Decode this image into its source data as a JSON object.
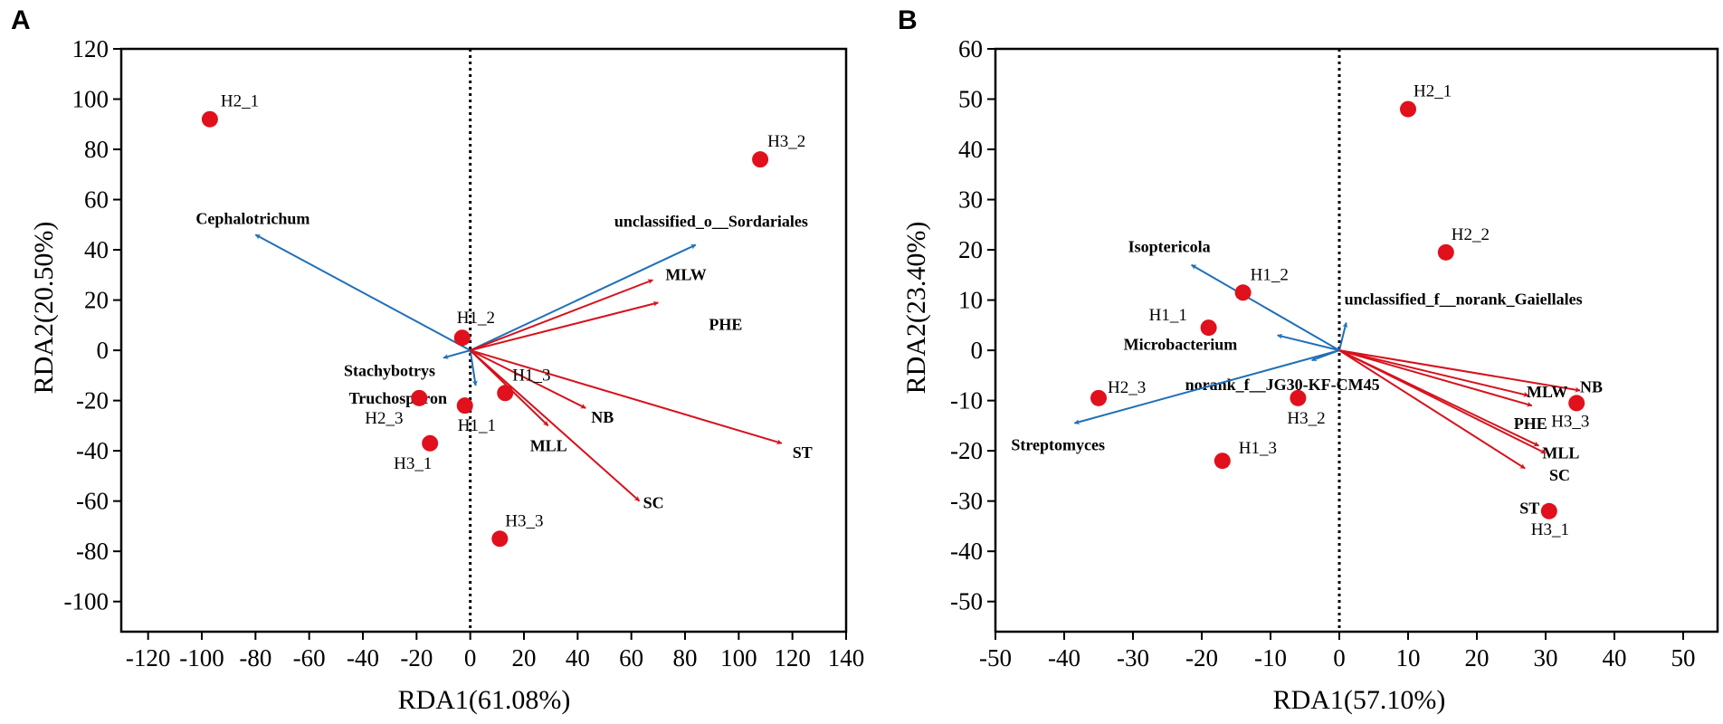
{
  "chart_data": [
    {
      "type": "scatter",
      "panel": "A",
      "xlabel": "RDA1(61.08%)",
      "ylabel": "RDA2(20.50%)",
      "xlim": [
        -130,
        140
      ],
      "ylim": [
        -112,
        120
      ],
      "xticks": [
        -120,
        -100,
        -80,
        -60,
        -40,
        -20,
        0,
        20,
        40,
        60,
        80,
        100,
        120,
        140
      ],
      "xtick_labels": [
        "-120",
        "-100",
        "-80",
        "-60",
        "-40",
        "-20",
        "0",
        "20",
        "40",
        "60",
        "80",
        "100",
        "120",
        "140"
      ],
      "yticks": [
        120,
        100,
        80,
        60,
        40,
        20,
        0,
        -20,
        -40,
        -60,
        -80,
        -100
      ],
      "ytick_labels": [
        "120",
        "100",
        "80",
        "60",
        "40",
        "20",
        "0",
        "-20",
        "-40",
        "-60",
        "-80",
        "-100"
      ],
      "samples": [
        {
          "name": "H2_1",
          "x": -97,
          "y": 92
        },
        {
          "name": "H3_2",
          "x": 108,
          "y": 76
        },
        {
          "name": "H1_2",
          "x": -3,
          "y": 5
        },
        {
          "name": "H1_3",
          "x": 13,
          "y": -17
        },
        {
          "name": "H2_3",
          "x": -19,
          "y": -19
        },
        {
          "name": "H1_1",
          "x": -2,
          "y": -22
        },
        {
          "name": "H3_1",
          "x": -15,
          "y": -37
        },
        {
          "name": "H3_3",
          "x": 11,
          "y": -75
        }
      ],
      "species_arrows": [
        {
          "name": "Cephalotrichum",
          "x": -80,
          "y": 46
        },
        {
          "name": "unclassified_o__Sordariales",
          "x": 84,
          "y": 42
        },
        {
          "name": "Stachybotrys",
          "x": -10,
          "y": -3
        },
        {
          "name": "Truchosporon",
          "x": 2,
          "y": -14
        }
      ],
      "env_arrows": [
        {
          "name": "MLW",
          "x": 68,
          "y": 28
        },
        {
          "name": "PHE",
          "x": 70,
          "y": 19
        },
        {
          "name": "NB",
          "x": 43,
          "y": -23
        },
        {
          "name": "MLL",
          "x": 29,
          "y": -30
        },
        {
          "name": "SC",
          "x": 63,
          "y": -60
        },
        {
          "name": "ST",
          "x": 116,
          "y": -37
        }
      ]
    },
    {
      "type": "scatter",
      "panel": "B",
      "xlabel": "RDA1(57.10%)",
      "ylabel": "RDA2(23.40%)",
      "xlim": [
        -50,
        55
      ],
      "ylim": [
        -56,
        60
      ],
      "xticks": [
        -50,
        -40,
        -30,
        -20,
        -10,
        0,
        10,
        20,
        30,
        40,
        50
      ],
      "xtick_labels": [
        "-50",
        "-40",
        "-30",
        "-20",
        "-10",
        "0",
        "10",
        "20",
        "30",
        "40",
        "50"
      ],
      "yticks": [
        60,
        50,
        40,
        30,
        20,
        10,
        0,
        -10,
        -20,
        -30,
        -40,
        -50
      ],
      "ytick_labels": [
        "60",
        "50",
        "40",
        "30",
        "20",
        "10",
        "0",
        "-10",
        "-20",
        "-30",
        "-40",
        "-50"
      ],
      "samples": [
        {
          "name": "H2_1",
          "x": 10,
          "y": 48
        },
        {
          "name": "H2_2",
          "x": 15.5,
          "y": 19.5
        },
        {
          "name": "H1_2",
          "x": -14,
          "y": 11.5
        },
        {
          "name": "H1_1",
          "x": -19,
          "y": 4.5
        },
        {
          "name": "H2_3",
          "x": -35,
          "y": -9.5
        },
        {
          "name": "H3_2",
          "x": -6,
          "y": -9.5
        },
        {
          "name": "H1_3",
          "x": -17,
          "y": -22
        },
        {
          "name": "H3_3",
          "x": 34.5,
          "y": -10.5
        },
        {
          "name": "H3_1",
          "x": 30.5,
          "y": -32
        }
      ],
      "species_arrows": [
        {
          "name": "Isoptericola",
          "x": -21.5,
          "y": 17
        },
        {
          "name": "Microbacterium",
          "x": -9,
          "y": 3
        },
        {
          "name": "unclassified_f__norank_Gaiellales",
          "x": 1,
          "y": 5.5
        },
        {
          "name": "norank_f__JG30-KF-CM45",
          "x": -4,
          "y": -2
        },
        {
          "name": "Streptomyces",
          "x": -38.5,
          "y": -14.5
        }
      ],
      "env_arrows": [
        {
          "name": "NB",
          "x": 35,
          "y": -8
        },
        {
          "name": "MLW",
          "x": 27.5,
          "y": -9
        },
        {
          "name": "PHE",
          "x": 28,
          "y": -11
        },
        {
          "name": "MLL",
          "x": 29,
          "y": -19
        },
        {
          "name": "SC",
          "x": 30,
          "y": -20.5
        },
        {
          "name": "ST",
          "x": 27,
          "y": -23.5
        }
      ]
    }
  ]
}
